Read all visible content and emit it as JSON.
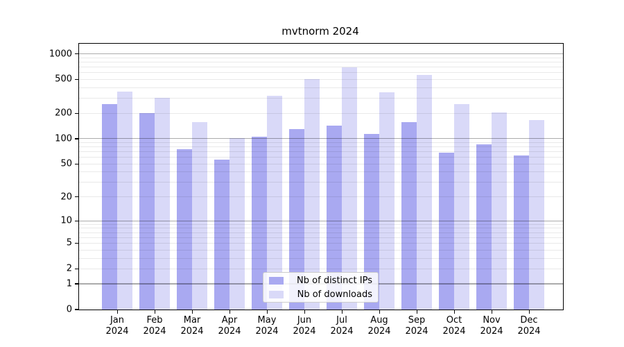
{
  "chart_data": {
    "type": "bar",
    "title": "mvtnorm 2024",
    "categories": [
      "Jan 2024",
      "Feb 2024",
      "Mar 2024",
      "Apr 2024",
      "May 2024",
      "Jun 2024",
      "Jul 2024",
      "Aug 2024",
      "Sep 2024",
      "Oct 2024",
      "Nov 2024",
      "Dec 2024"
    ],
    "series": [
      {
        "name": "Nb of distinct IPs",
        "color": "#a9a9f1",
        "values": [
          256,
          200,
          75,
          56,
          105,
          129,
          143,
          113,
          158,
          68,
          85,
          63
        ]
      },
      {
        "name": "Nb of downloads",
        "color": "#d9d9f8",
        "values": [
          363,
          301,
          157,
          102,
          324,
          505,
          690,
          356,
          560,
          257,
          203,
          167
        ]
      }
    ],
    "xlabel": "",
    "ylabel": "",
    "yscale": "log1p",
    "yticks": [
      0,
      1,
      2,
      5,
      10,
      20,
      50,
      100,
      200,
      500,
      1000
    ],
    "ylim": [
      0,
      1300
    ],
    "grid": {
      "major_at": [
        1,
        10,
        100,
        1000
      ],
      "minor_multiples": [
        2,
        3,
        4,
        5,
        6,
        7,
        8,
        9
      ]
    },
    "legend": {
      "position": "lower center"
    }
  }
}
